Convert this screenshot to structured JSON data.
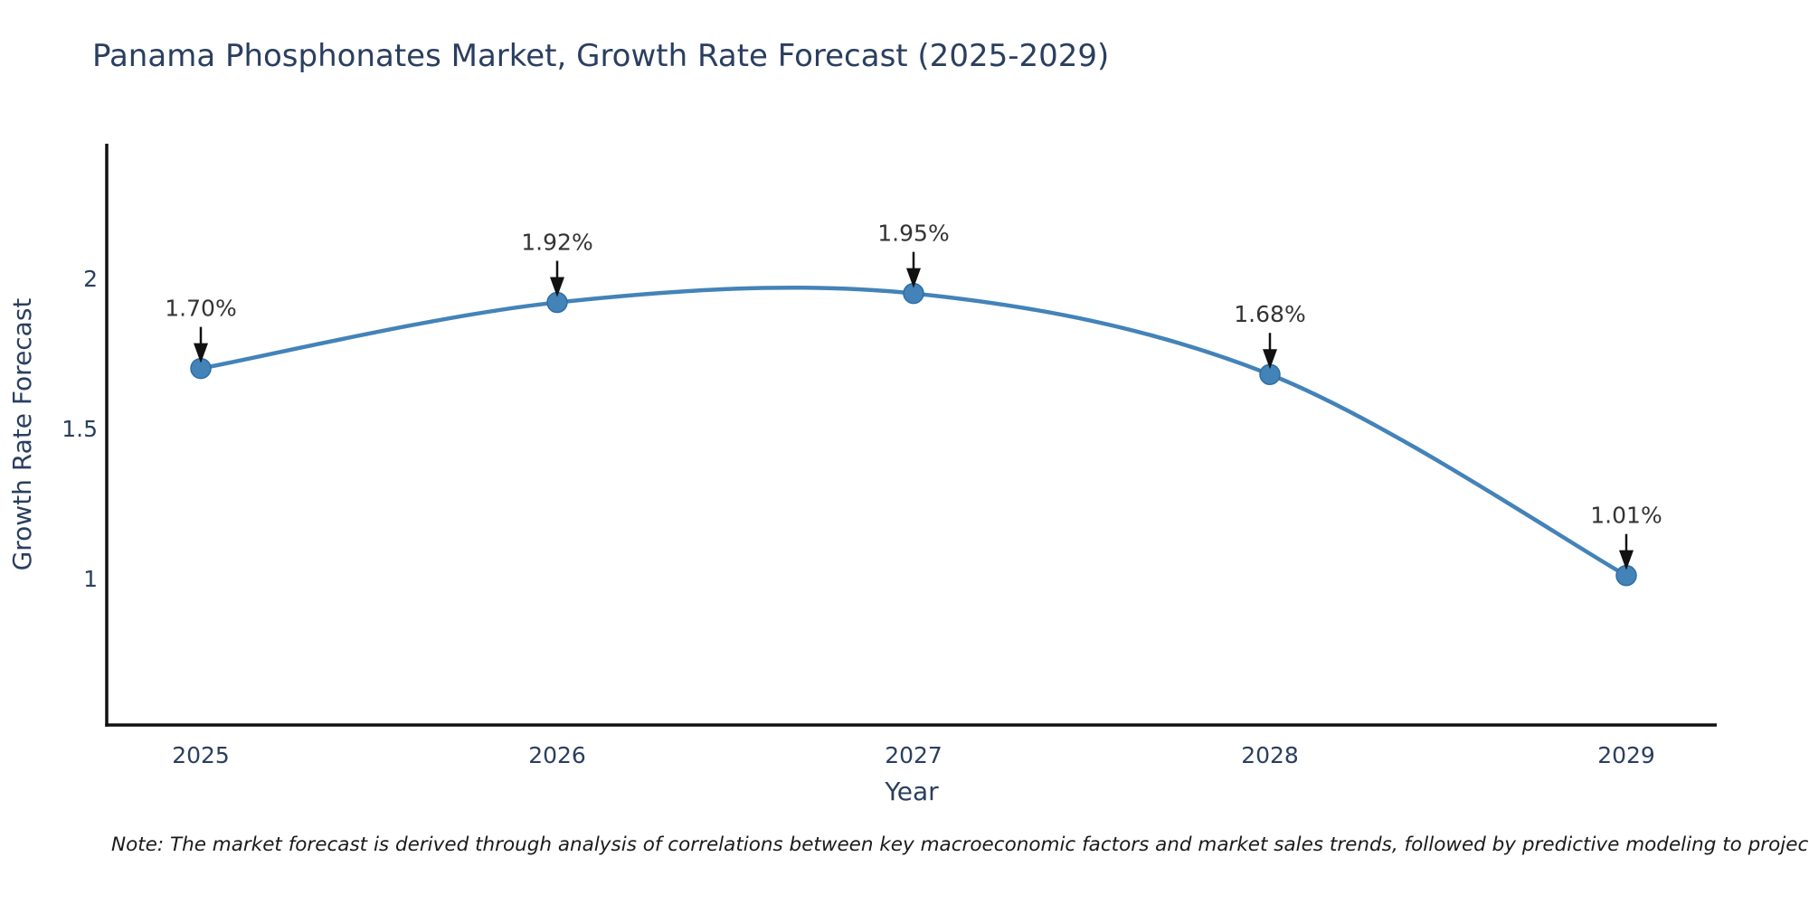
{
  "page": {
    "background": "#ffffff"
  },
  "chart_data": {
    "type": "line",
    "title": "Panama Phosphonates Market, Growth Rate Forecast (2025-2029)",
    "xlabel": "Year",
    "ylabel": "Growth Rate Forecast",
    "categories": [
      "2025",
      "2026",
      "2027",
      "2028",
      "2029"
    ],
    "series": [
      {
        "name": "Growth Rate Forecast",
        "values": [
          1.7,
          1.92,
          1.95,
          1.68,
          1.01
        ],
        "point_labels": [
          "1.70%",
          "1.92%",
          "1.95%",
          "1.68%",
          "1.01%"
        ]
      }
    ],
    "yticks": [
      {
        "value": 2,
        "label": "2"
      },
      {
        "value": 1.5,
        "label": "1.5"
      },
      {
        "value": 1,
        "label": "1"
      }
    ],
    "ylim": [
      0.5,
      2.45
    ],
    "grid": false,
    "legend_position": "none",
    "line_shape": "spline",
    "annotations": "value labels with down arrows above each point",
    "colors": {
      "line": "#4383b8",
      "marker": "#4383b8",
      "marker_edge": "#2e6ea6",
      "axis": "#111111",
      "tick_label": "#2a3f5f",
      "axis_title": "#2a3f5f",
      "annotation_text": "#333333",
      "arrow": "#111111"
    }
  },
  "note": {
    "text": "Note: The market forecast is derived through analysis of correlations between key macroeconomic factors and market sales trends, followed by predictive modeling to project future sales"
  }
}
